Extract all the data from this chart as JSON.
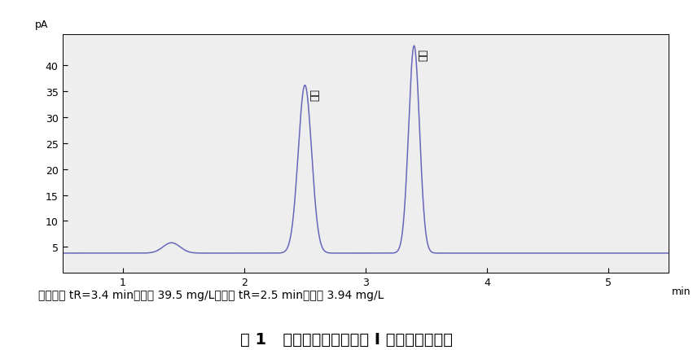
{
  "title": "图 1   甲醇和丙酮在色谱柱 I 上的气相色谱图",
  "note_line": "注：甲醇 tR=3.4 min，浓度 39.5 mg/L；丙酮 tR=2.5 min，浓度 3.94 mg/L",
  "ylabel": "pA",
  "xlabel": "min",
  "xlim": [
    0.5,
    5.5
  ],
  "ylim": [
    0,
    46
  ],
  "yticks": [
    5,
    10,
    15,
    20,
    25,
    30,
    35,
    40
  ],
  "xticks": [
    1,
    2,
    3,
    4,
    5
  ],
  "baseline": 3.8,
  "line_color": "#6666bb",
  "bg_color": "#ffffff",
  "plot_bg": "#eeeeee",
  "peak1_x": 2.5,
  "peak1_height": 36.2,
  "peak1_label": "丙酮",
  "peak1_sigma": 0.055,
  "peak2_x": 3.4,
  "peak2_height": 43.8,
  "peak2_label": "甲醇",
  "peak2_sigma": 0.045,
  "small_peak_x": 1.4,
  "small_peak_height": 5.8,
  "small_peak_sigma": 0.07,
  "font_size_title": 14,
  "font_size_axis": 9,
  "font_size_note": 10,
  "font_size_peak_label": 9
}
